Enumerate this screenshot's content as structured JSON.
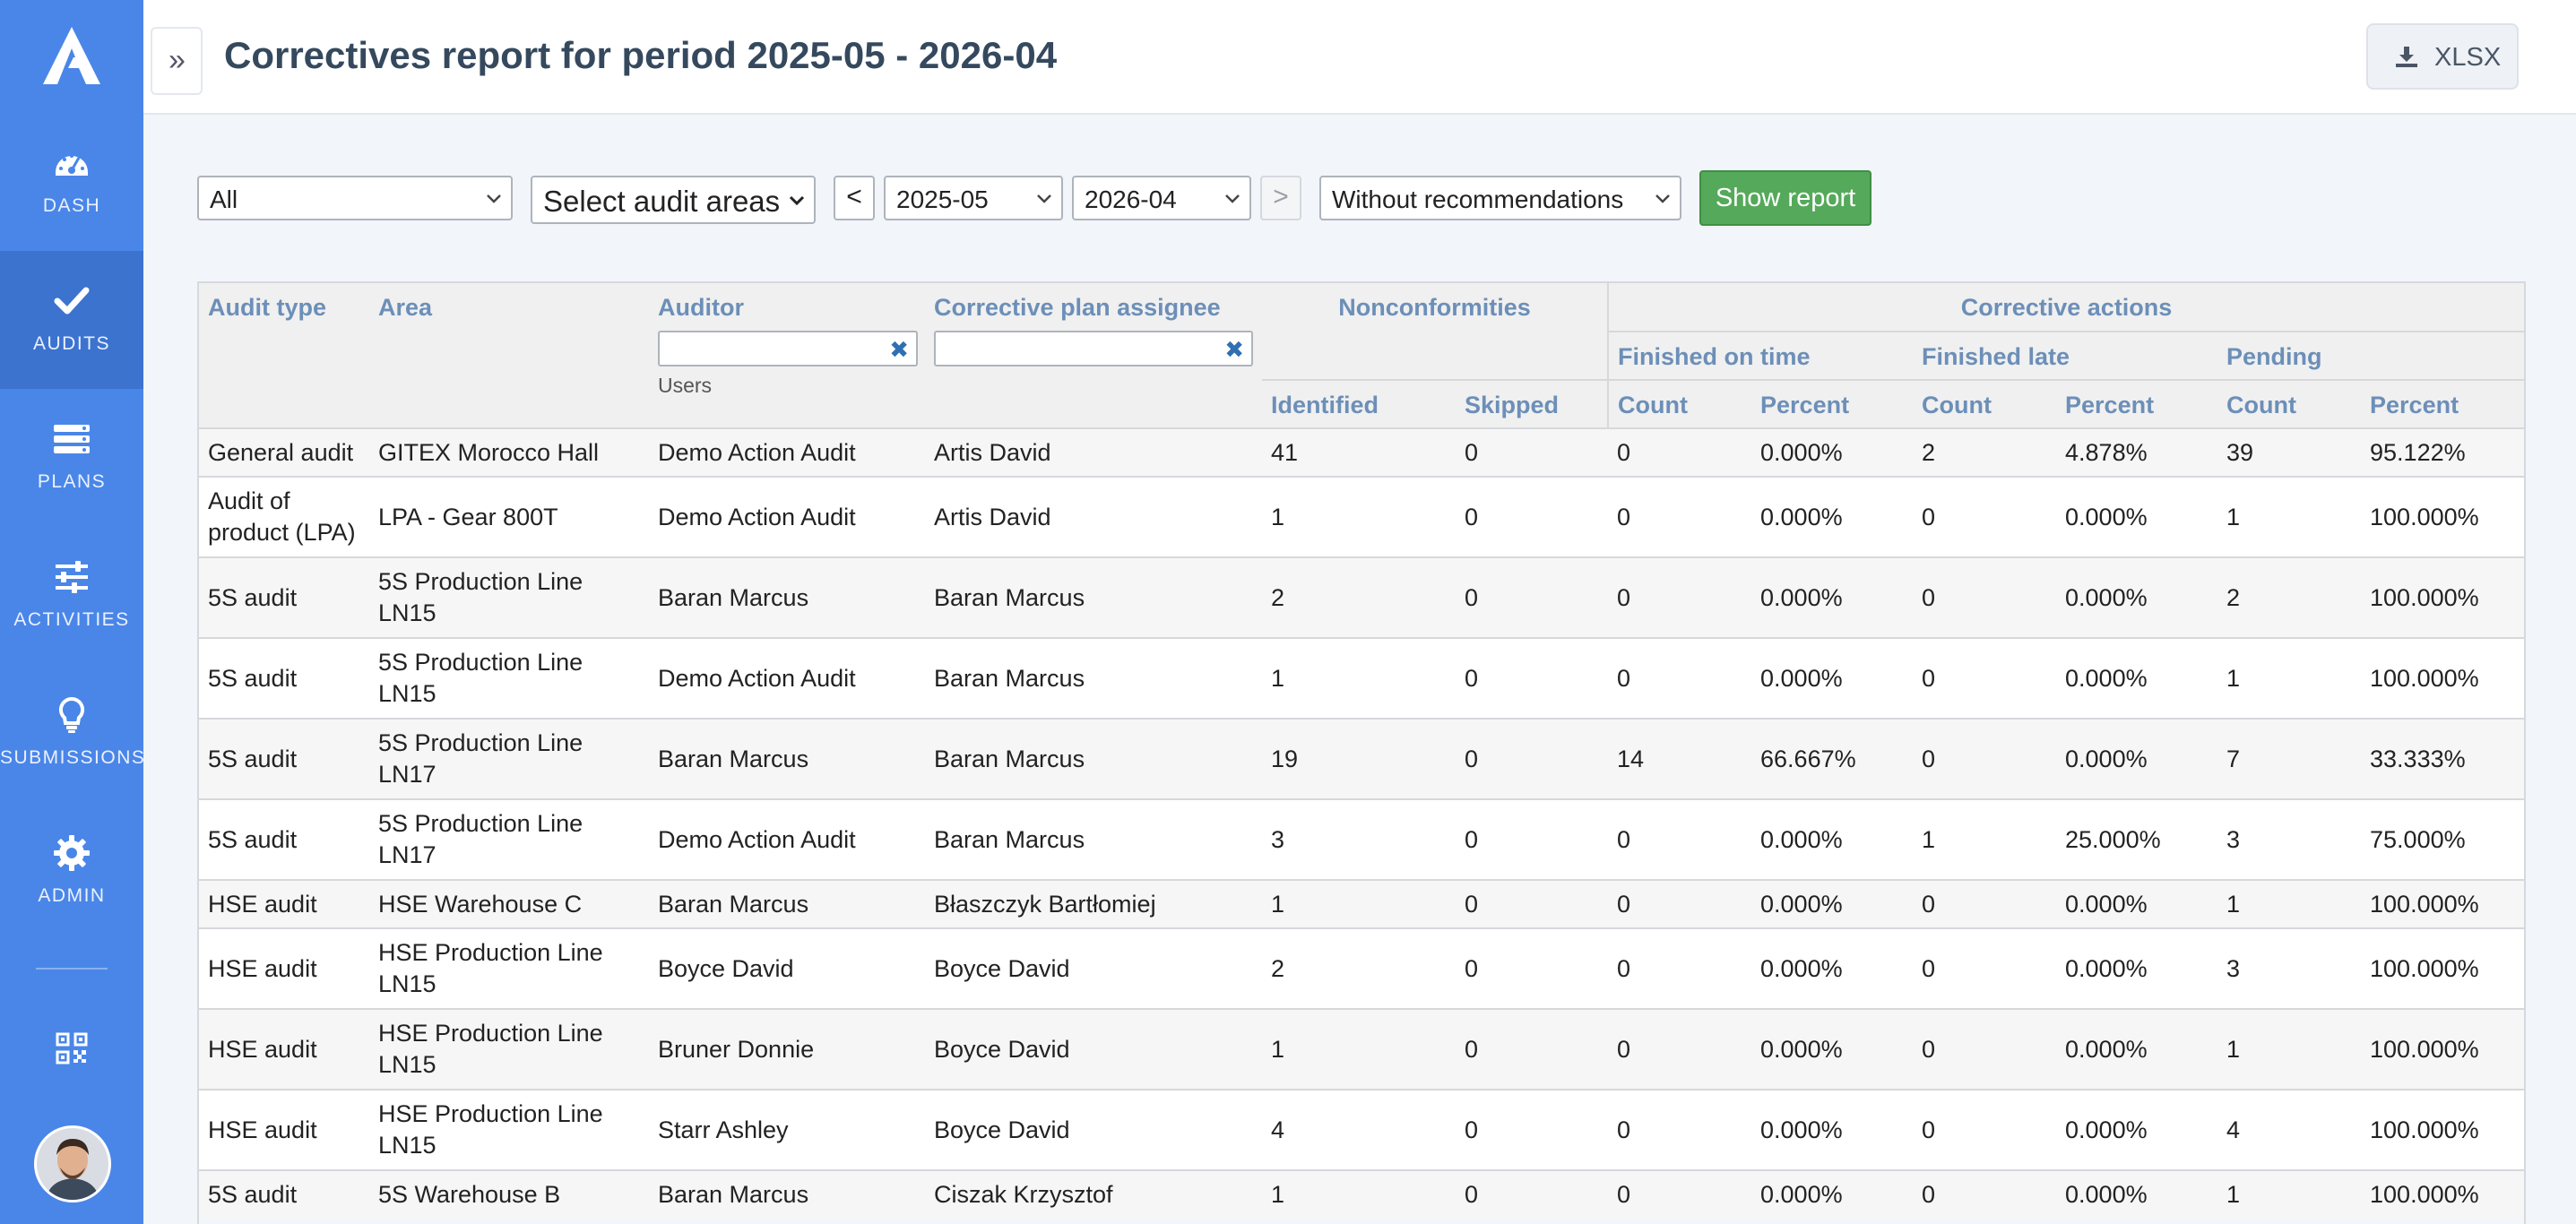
{
  "sidebar": {
    "items": [
      {
        "label": "DASH",
        "icon": "dashboard-icon"
      },
      {
        "label": "AUDITS",
        "icon": "check-icon"
      },
      {
        "label": "PLANS",
        "icon": "plans-icon"
      },
      {
        "label": "ACTIVITIES",
        "icon": "sliders-icon"
      },
      {
        "label": "SUBMISSIONS",
        "icon": "lightbulb-icon"
      },
      {
        "label": "ADMIN",
        "icon": "gear-icon"
      }
    ],
    "active": "AUDITS"
  },
  "header": {
    "toggle": "»",
    "title": "Correctives report for period 2025-05 - 2026-04",
    "export_label": "XLSX"
  },
  "filters": {
    "audit_type": "All",
    "audit_areas": "Select audit areas",
    "prev": "<",
    "from": "2025-05",
    "to": "2026-04",
    "next": ">",
    "recommendations": "Without recommendations",
    "show_report": "Show report"
  },
  "table": {
    "headers": {
      "audit_type": "Audit type",
      "area": "Area",
      "auditor": "Auditor",
      "auditor_hint": "Users",
      "assignee": "Corrective plan assignee",
      "nonconformities": "Nonconformities",
      "identified": "Identified",
      "skipped": "Skipped",
      "corrective_actions": "Corrective actions",
      "finished_on_time": "Finished on time",
      "finished_late": "Finished late",
      "pending": "Pending",
      "count": "Count",
      "percent": "Percent"
    },
    "clear_icon": "✖",
    "rows": [
      {
        "type": "General audit",
        "area": "GITEX Morocco Hall",
        "auditor": "Demo Action Audit",
        "assignee": "Artis David",
        "identified": "41",
        "skipped": "0",
        "on_time_count": "0",
        "on_time_pct": "0.000%",
        "late_count": "2",
        "late_pct": "4.878%",
        "pending_count": "39",
        "pending_pct": "95.122%"
      },
      {
        "type": "Audit of product (LPA)",
        "area": "LPA - Gear 800T",
        "auditor": "Demo Action Audit",
        "assignee": "Artis David",
        "identified": "1",
        "skipped": "0",
        "on_time_count": "0",
        "on_time_pct": "0.000%",
        "late_count": "0",
        "late_pct": "0.000%",
        "pending_count": "1",
        "pending_pct": "100.000%"
      },
      {
        "type": "5S audit",
        "area": "5S Production Line LN15",
        "auditor": "Baran Marcus",
        "assignee": "Baran Marcus",
        "identified": "2",
        "skipped": "0",
        "on_time_count": "0",
        "on_time_pct": "0.000%",
        "late_count": "0",
        "late_pct": "0.000%",
        "pending_count": "2",
        "pending_pct": "100.000%"
      },
      {
        "type": "5S audit",
        "area": "5S Production Line LN15",
        "auditor": "Demo Action Audit",
        "assignee": "Baran Marcus",
        "identified": "1",
        "skipped": "0",
        "on_time_count": "0",
        "on_time_pct": "0.000%",
        "late_count": "0",
        "late_pct": "0.000%",
        "pending_count": "1",
        "pending_pct": "100.000%"
      },
      {
        "type": "5S audit",
        "area": "5S Production Line LN17",
        "auditor": "Baran Marcus",
        "assignee": "Baran Marcus",
        "identified": "19",
        "skipped": "0",
        "on_time_count": "14",
        "on_time_pct": "66.667%",
        "late_count": "0",
        "late_pct": "0.000%",
        "pending_count": "7",
        "pending_pct": "33.333%"
      },
      {
        "type": "5S audit",
        "area": "5S Production Line LN17",
        "auditor": "Demo Action Audit",
        "assignee": "Baran Marcus",
        "identified": "3",
        "skipped": "0",
        "on_time_count": "0",
        "on_time_pct": "0.000%",
        "late_count": "1",
        "late_pct": "25.000%",
        "pending_count": "3",
        "pending_pct": "75.000%"
      },
      {
        "type": "HSE audit",
        "area": "HSE Warehouse C",
        "auditor": "Baran Marcus",
        "assignee": "Błaszczyk Bartłomiej",
        "identified": "1",
        "skipped": "0",
        "on_time_count": "0",
        "on_time_pct": "0.000%",
        "late_count": "0",
        "late_pct": "0.000%",
        "pending_count": "1",
        "pending_pct": "100.000%"
      },
      {
        "type": "HSE audit",
        "area": "HSE Production Line LN15",
        "auditor": "Boyce David",
        "assignee": "Boyce David",
        "identified": "2",
        "skipped": "0",
        "on_time_count": "0",
        "on_time_pct": "0.000%",
        "late_count": "0",
        "late_pct": "0.000%",
        "pending_count": "3",
        "pending_pct": "100.000%"
      },
      {
        "type": "HSE audit",
        "area": "HSE Production Line LN15",
        "auditor": "Bruner Donnie",
        "assignee": "Boyce David",
        "identified": "1",
        "skipped": "0",
        "on_time_count": "0",
        "on_time_pct": "0.000%",
        "late_count": "0",
        "late_pct": "0.000%",
        "pending_count": "1",
        "pending_pct": "100.000%"
      },
      {
        "type": "HSE audit",
        "area": "HSE Production Line LN15",
        "auditor": "Starr Ashley",
        "assignee": "Boyce David",
        "identified": "4",
        "skipped": "0",
        "on_time_count": "0",
        "on_time_pct": "0.000%",
        "late_count": "0",
        "late_pct": "0.000%",
        "pending_count": "4",
        "pending_pct": "100.000%"
      },
      {
        "type": "5S audit",
        "area": "5S Warehouse B",
        "auditor": "Baran Marcus",
        "assignee": "Ciszak Krzysztof",
        "identified": "1",
        "skipped": "0",
        "on_time_count": "0",
        "on_time_pct": "0.000%",
        "late_count": "0",
        "late_pct": "0.000%",
        "pending_count": "1",
        "pending_pct": "100.000%"
      }
    ]
  }
}
